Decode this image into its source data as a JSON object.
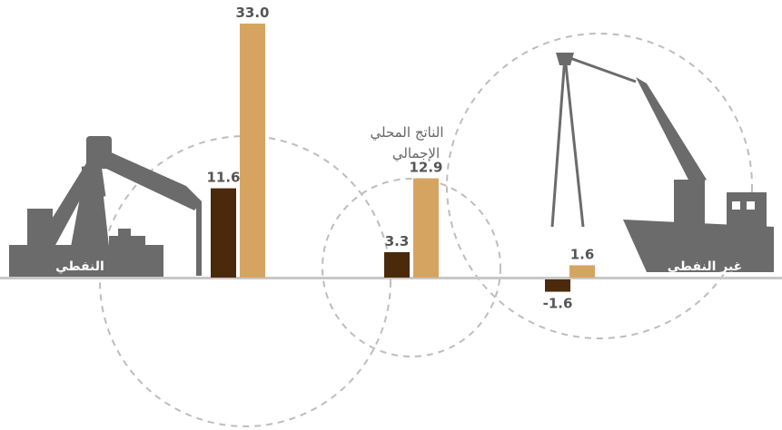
{
  "chart_data": {
    "type": "bar",
    "categories": [
      "النفطي",
      "الناتج المحلي الإجمالي",
      "غير النفطي"
    ],
    "category_labels": {
      "oil": "النفطي",
      "gdp_line1": "الناتج المحلي",
      "gdp_line2": "الإجمالي",
      "non_oil": "غير النفطي"
    },
    "series": [
      {
        "values": [
          11.6,
          3.3,
          -1.6
        ],
        "color": "#4a2a0a"
      },
      {
        "values": [
          33.0,
          12.9,
          1.6
        ],
        "color": "#d6a461"
      }
    ],
    "value_labels": [
      [
        "11.6",
        "3.3",
        "-1.6"
      ],
      [
        "33.0",
        "12.9",
        "1.6"
      ]
    ],
    "ylim": [
      -1.6,
      33.0
    ],
    "grid": false,
    "legend": "none",
    "icons": [
      "oil-pump-icon",
      "ship-crane-icon"
    ],
    "colors": {
      "axis": "#c8c8c8",
      "silhouette": "#6b6b6b",
      "dashed": "#bdbdbd"
    }
  }
}
